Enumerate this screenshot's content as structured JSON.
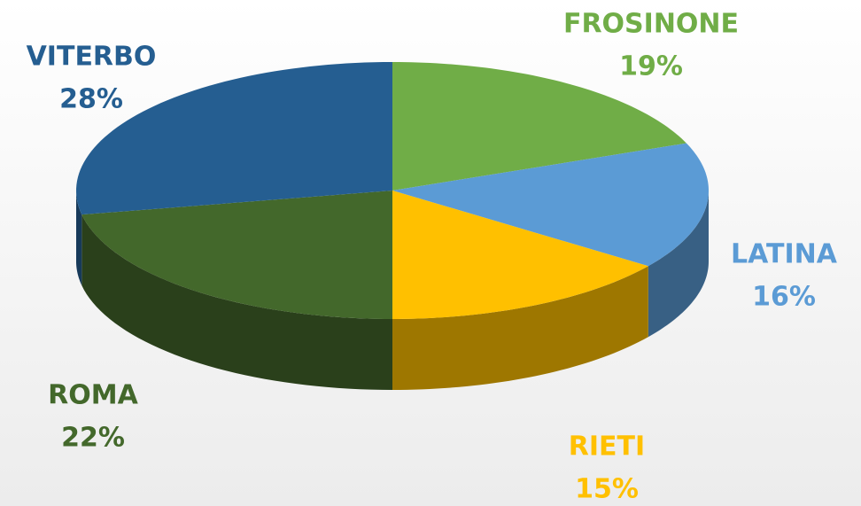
{
  "chart_data": {
    "type": "pie",
    "categories": [
      "FROSINONE",
      "LATINA",
      "RIETI",
      "ROMA",
      "VITERBO"
    ],
    "values": [
      19,
      16,
      15,
      22,
      28
    ],
    "value_labels": [
      "19%",
      "16%",
      "15%",
      "22%",
      "28%"
    ],
    "colors": [
      "#70ad47",
      "#5b9bd5",
      "#ffc000",
      "#43682b",
      "#255e91"
    ]
  }
}
